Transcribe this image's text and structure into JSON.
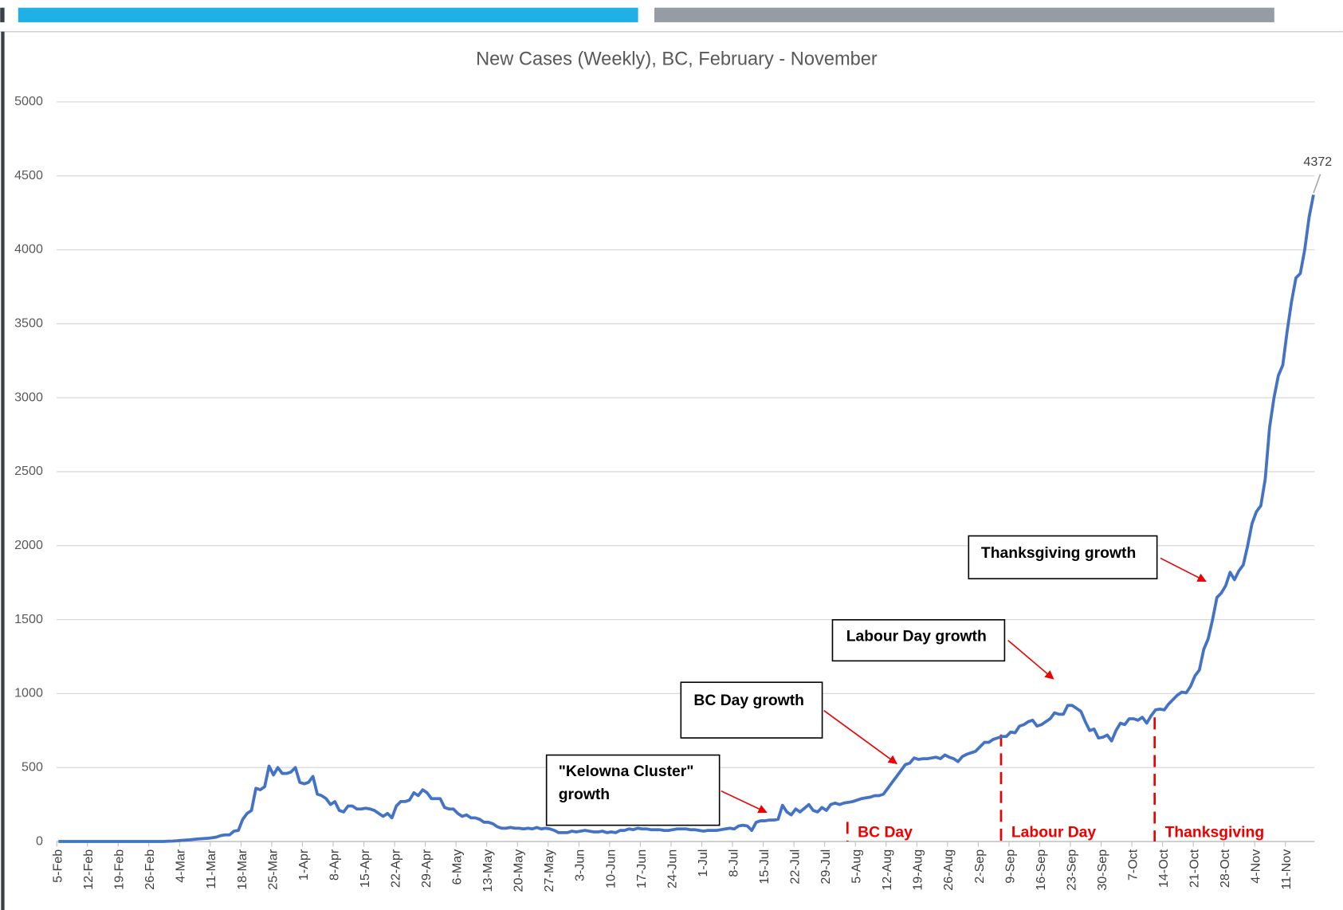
{
  "chart_data": {
    "type": "line",
    "title": "New Cases (Weekly), BC, February - November",
    "categories": [
      "5-Feb",
      null,
      null,
      null,
      null,
      null,
      null,
      "12-Feb",
      null,
      null,
      null,
      null,
      null,
      null,
      "19-Feb",
      null,
      null,
      null,
      null,
      null,
      null,
      "26-Feb",
      null,
      null,
      null,
      null,
      null,
      null,
      "4-Mar",
      null,
      null,
      null,
      null,
      null,
      null,
      "11-Mar",
      null,
      null,
      null,
      null,
      null,
      null,
      "18-Mar",
      null,
      null,
      null,
      null,
      null,
      null,
      "25-Mar",
      null,
      null,
      null,
      null,
      null,
      null,
      "1-Apr",
      null,
      null,
      null,
      null,
      null,
      null,
      "8-Apr",
      null,
      null,
      null,
      null,
      null,
      null,
      "15-Apr",
      null,
      null,
      null,
      null,
      null,
      null,
      "22-Apr",
      null,
      null,
      null,
      null,
      null,
      null,
      "29-Apr",
      null,
      null,
      null,
      null,
      null,
      null,
      "6-May",
      null,
      null,
      null,
      null,
      null,
      null,
      "13-May",
      null,
      null,
      null,
      null,
      null,
      null,
      "20-May",
      null,
      null,
      null,
      null,
      null,
      null,
      "27-May",
      null,
      null,
      null,
      null,
      null,
      null,
      "3-Jun",
      null,
      null,
      null,
      null,
      null,
      null,
      "10-Jun",
      null,
      null,
      null,
      null,
      null,
      null,
      "17-Jun",
      null,
      null,
      null,
      null,
      null,
      null,
      "24-Jun",
      null,
      null,
      null,
      null,
      null,
      null,
      "1-Jul",
      null,
      null,
      null,
      null,
      null,
      null,
      "8-Jul",
      null,
      null,
      null,
      null,
      null,
      null,
      "15-Jul",
      null,
      null,
      null,
      null,
      null,
      null,
      "22-Jul",
      null,
      null,
      null,
      null,
      null,
      null,
      "29-Jul",
      null,
      null,
      null,
      null,
      null,
      null,
      "5-Aug",
      null,
      null,
      null,
      null,
      null,
      null,
      "12-Aug",
      null,
      null,
      null,
      null,
      null,
      null,
      "19-Aug",
      null,
      null,
      null,
      null,
      null,
      null,
      "26-Aug",
      null,
      null,
      null,
      null,
      null,
      null,
      "2-Sep",
      null,
      null,
      null,
      null,
      null,
      null,
      "9-Sep",
      null,
      null,
      null,
      null,
      null,
      null,
      "16-Sep",
      null,
      null,
      null,
      null,
      null,
      null,
      "23-Sep",
      null,
      null,
      null,
      null,
      null,
      null,
      "30-Sep",
      null,
      null,
      null,
      null,
      null,
      null,
      "7-Oct",
      null,
      null,
      null,
      null,
      null,
      null,
      "14-Oct",
      null,
      null,
      null,
      null,
      null,
      null,
      "21-Oct",
      null,
      null,
      null,
      null,
      null,
      null,
      "28-Oct",
      null,
      null,
      null,
      null,
      null,
      null,
      "4-Nov",
      null,
      null,
      null,
      null,
      null,
      null,
      "11-Nov",
      null,
      null,
      null,
      null,
      null,
      null
    ],
    "values": [
      0,
      0,
      0,
      0,
      0,
      0,
      0,
      0,
      0,
      0,
      0,
      0,
      0,
      0,
      0,
      0,
      0,
      0,
      0,
      0,
      0,
      0,
      0,
      0,
      0,
      2,
      3,
      5,
      8,
      10,
      12,
      15,
      18,
      20,
      22,
      25,
      30,
      40,
      45,
      45,
      70,
      75,
      150,
      190,
      210,
      360,
      350,
      370,
      510,
      450,
      500,
      460,
      460,
      470,
      500,
      400,
      390,
      400,
      440,
      320,
      310,
      290,
      250,
      270,
      210,
      200,
      240,
      240,
      220,
      220,
      225,
      220,
      210,
      190,
      170,
      190,
      160,
      240,
      270,
      270,
      280,
      330,
      310,
      350,
      330,
      290,
      290,
      290,
      230,
      220,
      220,
      190,
      170,
      180,
      160,
      160,
      150,
      130,
      130,
      120,
      100,
      90,
      90,
      95,
      90,
      90,
      85,
      90,
      85,
      95,
      85,
      90,
      85,
      75,
      60,
      60,
      60,
      70,
      65,
      70,
      75,
      70,
      65,
      65,
      70,
      60,
      65,
      60,
      75,
      75,
      85,
      80,
      90,
      85,
      85,
      80,
      80,
      80,
      75,
      75,
      80,
      85,
      85,
      85,
      80,
      80,
      75,
      70,
      75,
      75,
      75,
      80,
      85,
      90,
      85,
      105,
      110,
      105,
      75,
      130,
      140,
      140,
      145,
      145,
      150,
      245,
      200,
      180,
      220,
      200,
      225,
      250,
      210,
      200,
      230,
      210,
      250,
      260,
      250,
      260,
      265,
      270,
      280,
      290,
      295,
      300,
      310,
      310,
      320,
      360,
      400,
      440,
      480,
      520,
      530,
      565,
      555,
      560,
      560,
      565,
      570,
      560,
      585,
      570,
      560,
      540,
      575,
      590,
      600,
      610,
      640,
      670,
      670,
      690,
      700,
      710,
      710,
      740,
      735,
      780,
      790,
      810,
      820,
      780,
      790,
      810,
      830,
      870,
      860,
      860,
      920,
      920,
      900,
      880,
      810,
      750,
      760,
      700,
      705,
      720,
      680,
      750,
      800,
      790,
      830,
      830,
      820,
      840,
      800,
      850,
      890,
      895,
      890,
      930,
      960,
      990,
      1010,
      1005,
      1050,
      1120,
      1160,
      1300,
      1370,
      1500,
      1650,
      1680,
      1730,
      1820,
      1770,
      1830,
      1870,
      2000,
      2150,
      2230,
      2270,
      2450,
      2800,
      3000,
      3150,
      3220,
      3450,
      3650,
      3810,
      3840,
      4000,
      4220,
      4372
    ],
    "color": "#4472c4",
    "ylim": [
      0,
      5000
    ],
    "yticks": [
      0,
      500,
      1000,
      1500,
      2000,
      2500,
      3000,
      3500,
      4000,
      4500,
      5000
    ],
    "grid": true,
    "annotations": [
      {
        "lines": [
          "Thanksgiving growth"
        ]
      },
      {
        "lines": [
          "Labour Day growth"
        ]
      },
      {
        "lines": [
          "BC Day growth"
        ]
      },
      {
        "lines": [
          "\"Kelowna Cluster\"",
          "growth"
        ]
      }
    ],
    "event_labels": [
      "BC Day",
      "Labour Day",
      "Thanksgiving"
    ]
  }
}
